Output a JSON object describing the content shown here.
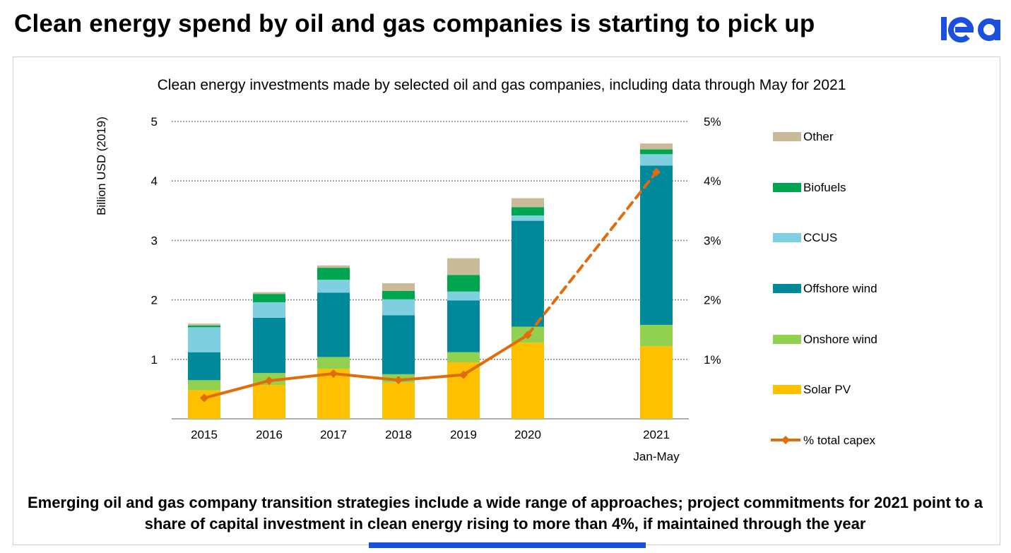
{
  "headline": "Clean energy spend by oil and gas companies is starting to pick up",
  "logo_text": "iea",
  "footer_text": "Emerging oil and gas company transition strategies include a wide range of approaches; project commitments for 2021 point to a share of capital investment in clean energy rising to more than 4%, if maintained through the year",
  "colors": {
    "Solar PV": "#ffc000",
    "Onshore wind": "#92d050",
    "Offshore wind": "#00889b",
    "CCUS": "#7ecfe0",
    "Biofuels": "#00a64f",
    "Other": "#c9bb98",
    "capex_line": "#e26b0a",
    "logo": "#1a4fe0"
  },
  "chart_data": {
    "type": "bar",
    "stacked": true,
    "title": "Clean energy investments made by selected oil and gas companies, including data through May for 2021",
    "ylabel": "Billion USD (2019)",
    "ylim": [
      0,
      5
    ],
    "y_ticks": [
      "1",
      "2",
      "3",
      "4",
      "5"
    ],
    "y2lim": [
      0,
      5
    ],
    "y2_ticks": [
      "1%",
      "2%",
      "3%",
      "4%",
      "5%"
    ],
    "grid": true,
    "legend_position": "right",
    "categories": [
      "2015",
      "2016",
      "2017",
      "2018",
      "2019",
      "2020",
      "2021"
    ],
    "category_sublabels": [
      "",
      "",
      "",
      "",
      "",
      "",
      "Jan-May"
    ],
    "series": [
      {
        "name": "Solar PV",
        "values": [
          0.48,
          0.57,
          0.84,
          0.61,
          0.95,
          1.28,
          1.22
        ]
      },
      {
        "name": "Onshore wind",
        "values": [
          0.17,
          0.2,
          0.2,
          0.14,
          0.17,
          0.27,
          0.36
        ]
      },
      {
        "name": "Offshore wind",
        "values": [
          0.47,
          0.93,
          1.08,
          0.99,
          0.87,
          1.78,
          2.68
        ]
      },
      {
        "name": "CCUS",
        "values": [
          0.42,
          0.26,
          0.22,
          0.27,
          0.15,
          0.09,
          0.19
        ]
      },
      {
        "name": "Biofuels",
        "values": [
          0.03,
          0.14,
          0.2,
          0.14,
          0.28,
          0.14,
          0.08
        ]
      },
      {
        "name": "Other",
        "values": [
          0.03,
          0.03,
          0.04,
          0.13,
          0.28,
          0.15,
          0.1
        ]
      }
    ],
    "line_series": {
      "name": "% total capex",
      "axis": "right",
      "values": [
        0.35,
        0.64,
        0.76,
        0.65,
        0.74,
        1.41,
        4.15
      ],
      "dashed_segments_from_index": 5
    },
    "legend_order": [
      "Other",
      "Biofuels",
      "CCUS",
      "Offshore wind",
      "Onshore wind",
      "Solar PV",
      "% total capex"
    ]
  }
}
